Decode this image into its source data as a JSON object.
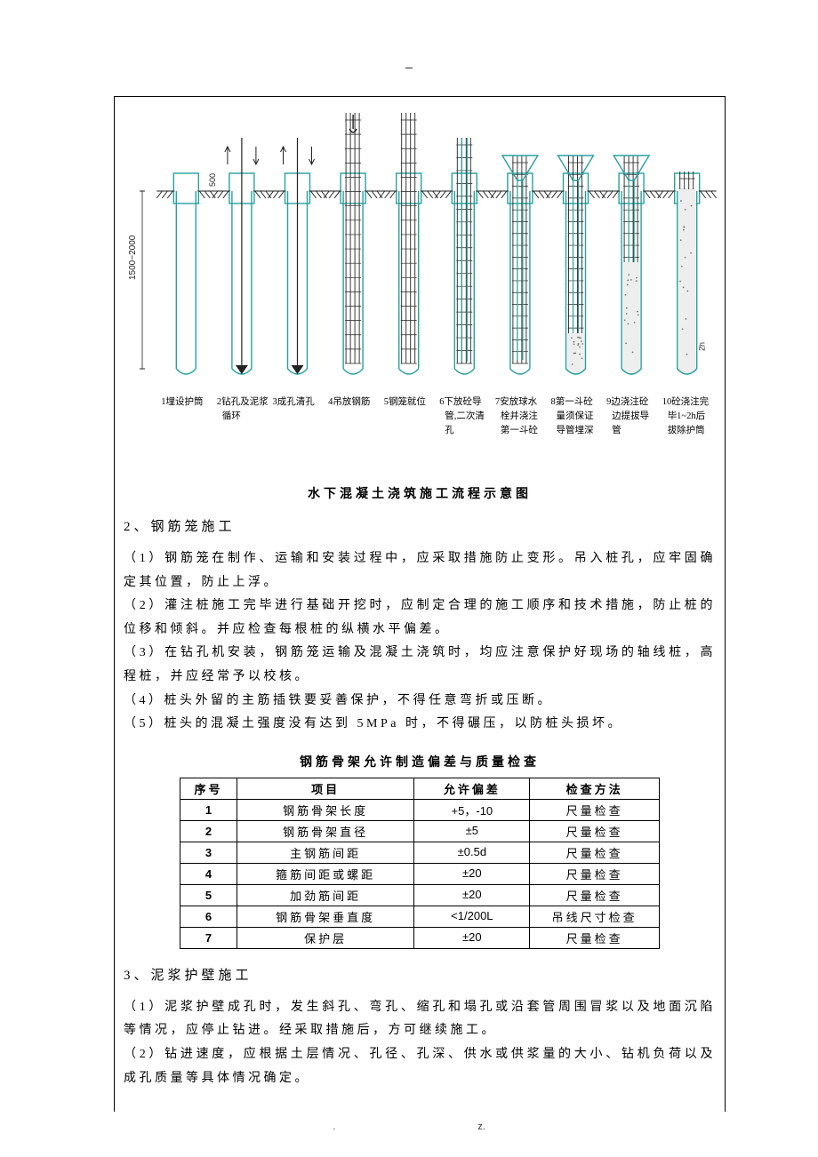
{
  "top_mark": "-",
  "diagram": {
    "dim_left1": "1500~2000",
    "dim_left2": "500",
    "dim_right": "h1-2h后",
    "steps": [
      {
        "n": "1",
        "t1": "埋设护筒",
        "t2": "",
        "t3": ""
      },
      {
        "n": "2",
        "t1": "钻孔及泥浆",
        "t2": "循环",
        "t3": ""
      },
      {
        "n": "3",
        "t1": "成孔清孔",
        "t2": "",
        "t3": ""
      },
      {
        "n": "4",
        "t1": "吊放钢筋",
        "t2": "",
        "t3": ""
      },
      {
        "n": "5",
        "t1": "钢笼就位",
        "t2": "",
        "t3": ""
      },
      {
        "n": "6",
        "t1": "下放砼导",
        "t2": "管,二次清",
        "t3": "孔"
      },
      {
        "n": "7",
        "t1": "安放球水",
        "t2": "栓并浇注",
        "t3": "第一斗砼"
      },
      {
        "n": "8",
        "t1": "第一斗砼",
        "t2": "量须保证",
        "t3": "导管埋深"
      },
      {
        "n": "9",
        "t1": "边浇注砼",
        "t2": "边提拔导",
        "t3": "管"
      },
      {
        "n": "10",
        "t1": "砼浇注完",
        "t2": "毕1~2h后",
        "t3": "拔除护筒"
      }
    ],
    "colors": {
      "stroke_main": "#28a0a0",
      "stroke_blk": "#222",
      "hatch": "#222",
      "concrete": "#c7c7c7"
    }
  },
  "fig_caption": "水下混凝土浇筑施工流程示意图",
  "sec2_head": "2、钢筋笼施工",
  "sec2_paras": [
    "（1）钢筋笼在制作、运输和安装过程中，应采取措施防止变形。吊入桩孔，应牢固确定其位置，防止上浮。",
    "（2）灌注桩施工完毕进行基础开挖时，应制定合理的施工顺序和技术措施，防止桩的位移和倾斜。并应检查每根桩的纵横水平偏差。",
    "（3）在钻孔机安装，钢筋笼运输及混凝土浇筑时，均应注意保护好现场的轴线桩，高程桩，并应经常予以校核。",
    "（4）桩头外留的主筋插铁要妥善保护，不得任意弯折或压断。",
    "（5）桩头的混凝土强度没有达到 5MPa 时，不得碾压，以防桩头损坏。"
  ],
  "table_caption": "钢筋骨架允许制造偏差与质量检查",
  "table": {
    "headers": [
      "序号",
      "项目",
      "允许偏差",
      "检查方法"
    ],
    "rows": [
      [
        "1",
        "钢筋骨架长度",
        "+5，-10",
        "尺量检查"
      ],
      [
        "2",
        "钢筋骨架直径",
        "±5",
        "尺量检查"
      ],
      [
        "3",
        "主钢筋间距",
        "±0.5d",
        "尺量检查"
      ],
      [
        "4",
        "箍筋间距或螺距",
        "±20",
        "尺量检查"
      ],
      [
        "5",
        "加劲筋间距",
        "±20",
        "尺量检查"
      ],
      [
        "6",
        "钢筋骨架垂直度",
        "<1/200L",
        "吊线尺寸检查"
      ],
      [
        "7",
        "保护层",
        "±20",
        "尺量检查"
      ]
    ]
  },
  "sec3_head": "3、泥浆护壁施工",
  "sec3_paras": [
    "（1）泥浆护壁成孔时，发生斜孔、弯孔、缩孔和塌孔或沿套管周围冒浆以及地面沉陷等情况，应停止钻进。经采取措施后，方可继续施工。",
    "（2）钻进速度，应根据土层情况、孔径、孔深、供水或供浆量的大小、钻机负荷以及成孔质量等具体情况确定。"
  ],
  "footer_left": ".",
  "footer_right": "z."
}
